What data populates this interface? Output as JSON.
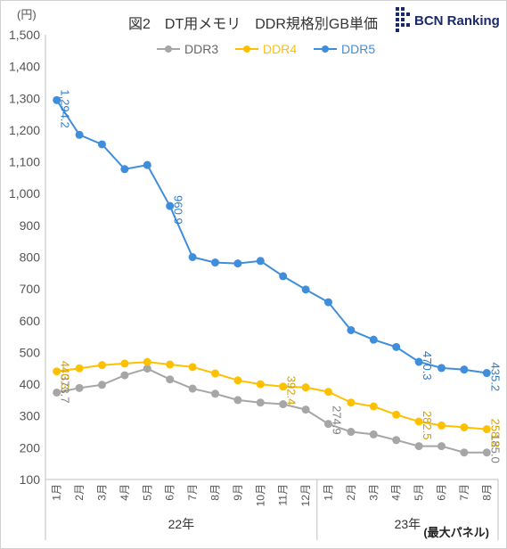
{
  "chart_data": {
    "type": "line",
    "title": "図2　DT用メモリ　DDR規格別GB単価",
    "y_unit": "(円)",
    "ylim": [
      100,
      1500
    ],
    "y_ticks": [
      "100",
      "200",
      "300",
      "400",
      "500",
      "600",
      "700",
      "800",
      "900",
      "1,000",
      "1,100",
      "1,200",
      "1,300",
      "1,400",
      "1,500"
    ],
    "categories": [
      "1月",
      "2月",
      "3月",
      "4月",
      "5月",
      "6月",
      "7月",
      "8月",
      "9月",
      "10月",
      "11月",
      "12月",
      "1月",
      "2月",
      "3月",
      "4月",
      "5月",
      "6月",
      "7月",
      "8月"
    ],
    "year_groups": [
      {
        "label": "22年",
        "start": 0,
        "end": 11
      },
      {
        "label": "23年",
        "start": 12,
        "end": 19
      }
    ],
    "series": [
      {
        "name": "DDR3",
        "color": "#a6a6a6",
        "values": [
          373.7,
          388,
          398,
          428,
          449,
          415,
          386,
          370,
          350,
          342,
          337,
          320,
          274.9,
          250,
          242,
          224,
          205,
          205,
          185,
          185.0
        ]
      },
      {
        "name": "DDR4",
        "color": "#ffc000",
        "values": [
          440.3,
          450,
          460,
          465,
          470,
          462,
          454,
          434,
          412,
          400,
          392.4,
          390,
          376,
          342,
          330,
          304,
          282.5,
          270,
          264,
          258.2
        ]
      },
      {
        "name": "DDR5",
        "color": "#3f8edb",
        "values": [
          1294.2,
          1185,
          1155,
          1077,
          1090,
          960.9,
          800,
          783,
          780,
          788,
          740,
          698,
          658,
          570,
          540,
          517,
          470.3,
          451,
          446,
          435.2
        ]
      }
    ],
    "data_labels": [
      {
        "series": 0,
        "index": 0,
        "text": "373.7"
      },
      {
        "series": 0,
        "index": 12,
        "text": "274.9"
      },
      {
        "series": 0,
        "index": 19,
        "text": "185.0"
      },
      {
        "series": 1,
        "index": 0,
        "text": "440.3"
      },
      {
        "series": 1,
        "index": 10,
        "text": "392.4"
      },
      {
        "series": 1,
        "index": 16,
        "text": "282.5"
      },
      {
        "series": 1,
        "index": 19,
        "text": "258.2"
      },
      {
        "series": 2,
        "index": 0,
        "text": "1,294.2"
      },
      {
        "series": 2,
        "index": 5,
        "text": "960.9"
      },
      {
        "series": 2,
        "index": 16,
        "text": "470.3"
      },
      {
        "series": 2,
        "index": 19,
        "text": "435.2"
      }
    ],
    "legend_position": "top",
    "grid": false,
    "logo_text": "BCN Ranking",
    "note": "(最大パネル)"
  }
}
